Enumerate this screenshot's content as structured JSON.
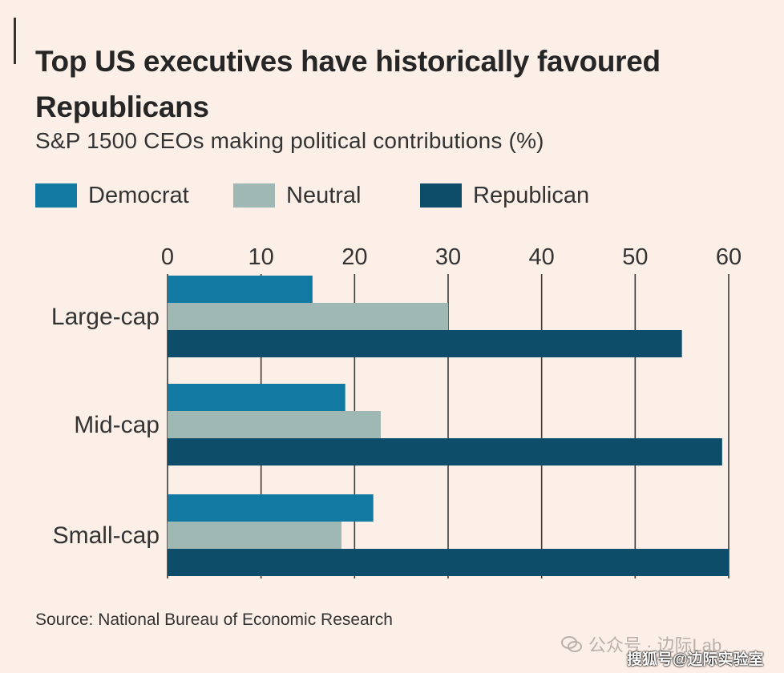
{
  "header": {
    "title": "Top US executives have historically favoured Republicans",
    "subtitle": "S&P 1500 CEOs making political contributions (%)"
  },
  "chart_data": {
    "type": "bar",
    "orientation": "horizontal",
    "title": "Top US executives have historically favoured Republicans",
    "subtitle": "S&P 1500 CEOs making political contributions (%)",
    "categories": [
      "Large-cap",
      "Mid-cap",
      "Small-cap"
    ],
    "series": [
      {
        "name": "Democrat",
        "color": "#1279a3",
        "values": [
          15.5,
          19,
          22
        ]
      },
      {
        "name": "Neutral",
        "color": "#9fb8b3",
        "values": [
          30,
          22.8,
          18.6
        ]
      },
      {
        "name": "Republican",
        "color": "#0d4d69",
        "values": [
          55,
          59.3,
          60
        ]
      }
    ],
    "x_ticks": [
      "0",
      "10",
      "20",
      "30",
      "40",
      "50",
      "60"
    ],
    "xlim": [
      0,
      60
    ],
    "xlabel": "",
    "ylabel": "",
    "grid": true,
    "legend_position": "top"
  },
  "footer": {
    "source": "Source: National Bureau of Economic Research"
  },
  "watermark": {
    "text": "公众号 · 边际Lab",
    "label": "搜狐号@边际实验室"
  }
}
